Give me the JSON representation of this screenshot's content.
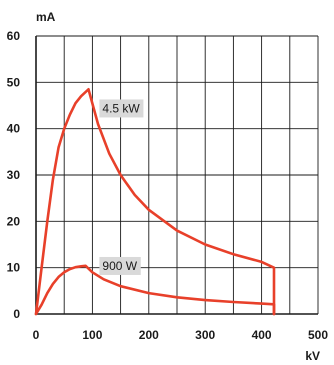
{
  "chart_data": {
    "type": "line",
    "xlabel": "kV",
    "ylabel": "mA",
    "xlim": [
      0,
      500
    ],
    "ylim": [
      0,
      60
    ],
    "xticks": [
      "0",
      "100",
      "200",
      "300",
      "400",
      "500"
    ],
    "yticks": [
      "0",
      "10",
      "20",
      "30",
      "40",
      "50",
      "60"
    ],
    "grid": true,
    "colors": {
      "series": "#e8402a",
      "annotation_box": "#d9d9d9",
      "grid": "#1a1a1a"
    },
    "series": [
      {
        "name": "4.5 kW",
        "x": [
          0,
          10,
          20,
          30,
          40,
          50,
          60,
          70,
          80,
          93,
          110,
          130,
          150,
          175,
          200,
          250,
          300,
          350,
          400,
          422,
          422
        ],
        "y": [
          0,
          10,
          20,
          29,
          36,
          40,
          43,
          45.5,
          47,
          48.5,
          41,
          34.6,
          30,
          25.7,
          22.5,
          18,
          15,
          12.9,
          11.25,
          10,
          0
        ]
      },
      {
        "name": "900 W",
        "x": [
          0,
          10,
          20,
          30,
          40,
          50,
          60,
          70,
          80,
          88,
          100,
          120,
          150,
          200,
          250,
          300,
          350,
          400,
          422,
          422
        ],
        "y": [
          0,
          2,
          4.5,
          6.5,
          8,
          9,
          9.7,
          10.1,
          10.3,
          10.4,
          9,
          7.5,
          6,
          4.5,
          3.6,
          3,
          2.6,
          2.25,
          2.1,
          0
        ]
      }
    ]
  }
}
